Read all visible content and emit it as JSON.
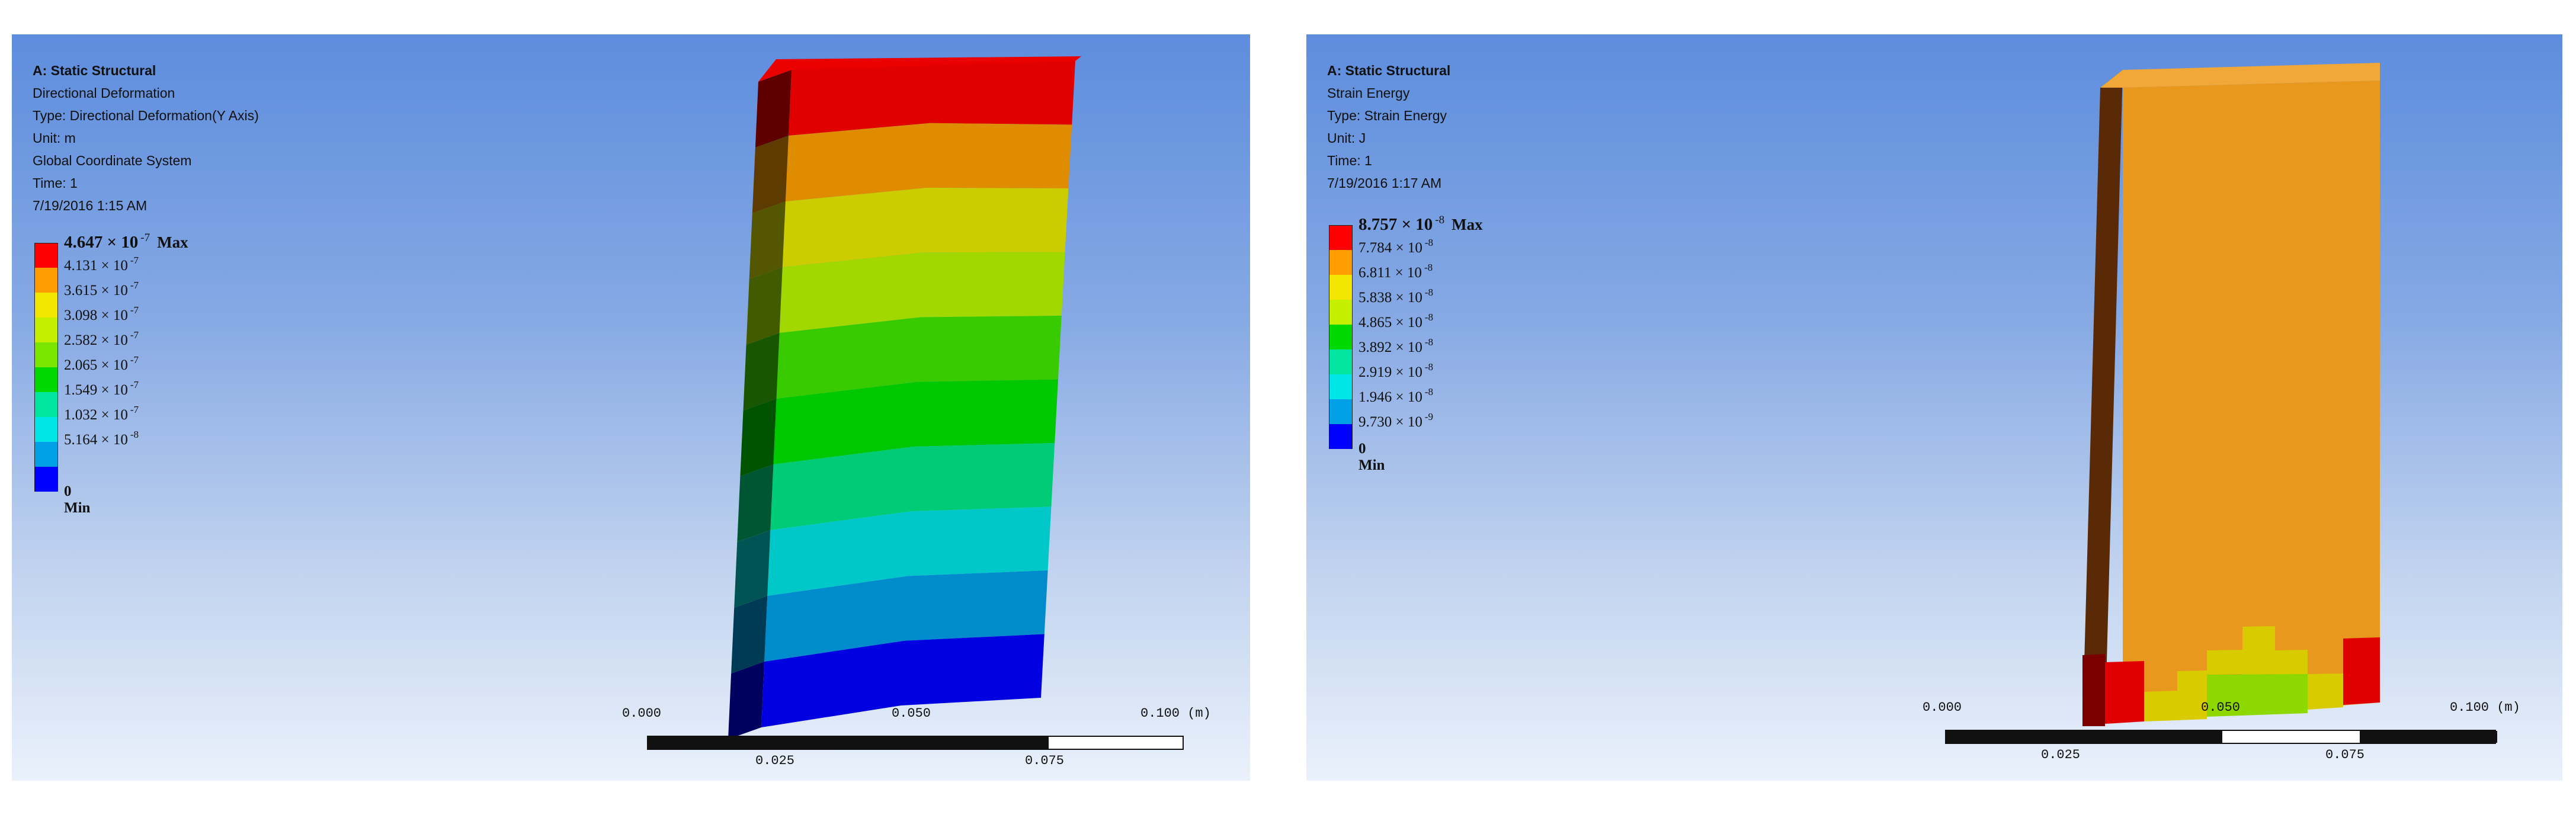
{
  "viewports": [
    {
      "info": [
        "A: Static Structural",
        "Directional Deformation",
        "Type: Directional Deformation(Y Axis)",
        "Unit: m",
        "Global Coordinate System",
        "Time: 1",
        "7/19/2016 1:15 AM"
      ],
      "legend": [
        {
          "mantissa": "4.647",
          "times": "× 10",
          "exp": "-7",
          "tag": "Max",
          "color": "#ff0000"
        },
        {
          "mantissa": "4.131",
          "times": "× 10",
          "exp": "-7",
          "tag": "",
          "color": "#ff9c00"
        },
        {
          "mantissa": "3.615",
          "times": "× 10",
          "exp": "-7",
          "tag": "",
          "color": "#f2e600"
        },
        {
          "mantissa": "3.098",
          "times": "× 10",
          "exp": "-7",
          "tag": "",
          "color": "#c6ef00"
        },
        {
          "mantissa": "2.582",
          "times": "× 10",
          "exp": "-7",
          "tag": "",
          "color": "#7ae600"
        },
        {
          "mantissa": "2.065",
          "times": "× 10",
          "exp": "-7",
          "tag": "",
          "color": "#00d900"
        },
        {
          "mantissa": "1.549",
          "times": "× 10",
          "exp": "-7",
          "tag": "",
          "color": "#00e6a0"
        },
        {
          "mantissa": "1.032",
          "times": "× 10",
          "exp": "-7",
          "tag": "",
          "color": "#00e6e6"
        },
        {
          "mantissa": "5.164",
          "times": "× 10",
          "exp": "-8",
          "tag": "",
          "color": "#00a0e6"
        },
        {
          "mantissa": "",
          "times": "",
          "exp": "",
          "tag": "",
          "color": "#0000ff"
        }
      ],
      "legend_min": "0 Min",
      "model_colors": [
        "#e00000",
        "#e08c00",
        "#cbcd00",
        "#a0d800",
        "#38cc00",
        "#00c800",
        "#00cc78",
        "#00c8c8",
        "#008ccc",
        "#0000e0"
      ],
      "scale": {
        "labels_top": [
          "0.000",
          "0.050",
          "0.100 (m)"
        ],
        "labels_bottom": [
          "0.025",
          "0.075"
        ]
      }
    },
    {
      "info": [
        "A: Static Structural",
        "Strain Energy",
        "Type: Strain Energy",
        "Unit: J",
        "Time: 1",
        "7/19/2016 1:17 AM"
      ],
      "legend": [
        {
          "mantissa": "8.757",
          "times": "× 10",
          "exp": "-8",
          "tag": "Max",
          "color": "#ff0000"
        },
        {
          "mantissa": "7.784",
          "times": "× 10",
          "exp": "-8",
          "tag": "",
          "color": "#ff9c00"
        },
        {
          "mantissa": "6.811",
          "times": "× 10",
          "exp": "-8",
          "tag": "",
          "color": "#f2e600"
        },
        {
          "mantissa": "5.838",
          "times": "× 10",
          "exp": "-8",
          "tag": "",
          "color": "#c6ef00"
        },
        {
          "mantissa": "4.865",
          "times": "× 10",
          "exp": "-8",
          "tag": "",
          "color": "#00d900"
        },
        {
          "mantissa": "3.892",
          "times": "× 10",
          "exp": "-8",
          "tag": "",
          "color": "#00e6a0"
        },
        {
          "mantissa": "2.919",
          "times": "× 10",
          "exp": "-8",
          "tag": "",
          "color": "#00e6e6"
        },
        {
          "mantissa": "1.946",
          "times": "× 10",
          "exp": "-8",
          "tag": "",
          "color": "#00a0e6"
        },
        {
          "mantissa": "9.730",
          "times": "× 10",
          "exp": "-9",
          "tag": "",
          "color": "#0000ff"
        }
      ],
      "legend_min": "0 Min",
      "model_colors": {
        "face": "#e8981c",
        "side": "#5a2a06",
        "top": "#f2a838",
        "red": "#e00000",
        "yellow": "#d8cc00",
        "green": "#8cd800"
      },
      "scale": {
        "labels_top": [
          "0.000",
          "0.050",
          "0.100 (m)"
        ],
        "labels_bottom": [
          "0.025",
          "0.075"
        ]
      }
    }
  ]
}
